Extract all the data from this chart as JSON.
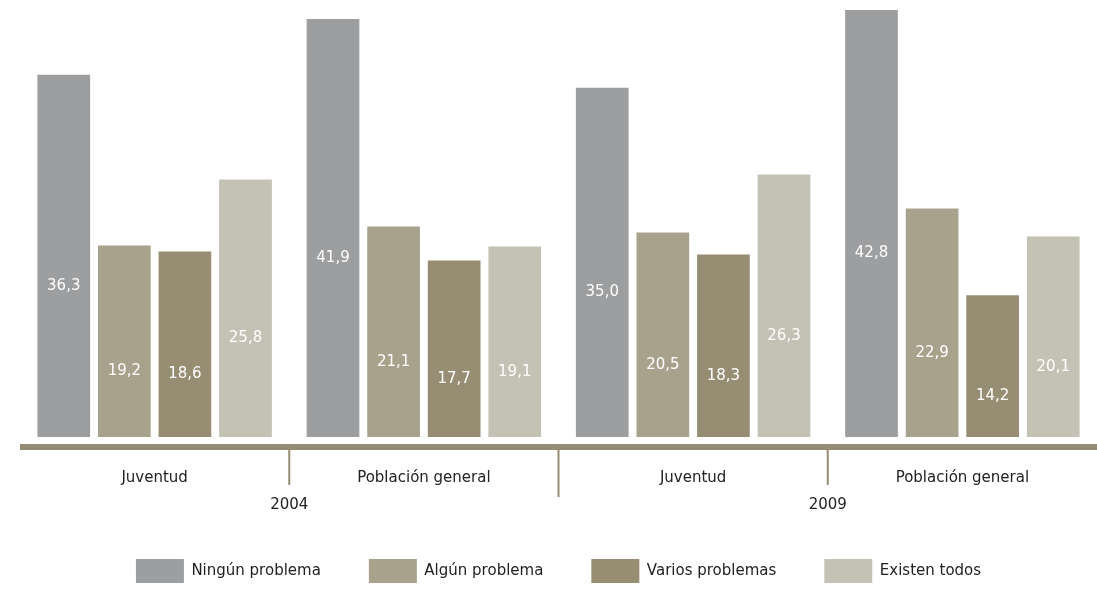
{
  "chart_data": {
    "type": "bar",
    "categories": [
      "Juventud",
      "Población general",
      "Juventud",
      "Población general"
    ],
    "series": [
      {
        "name": "Ningún problema",
        "color": "#9d9ea0",
        "values": [
          36.3,
          41.9,
          35.0,
          42.8
        ],
        "value_labels": [
          "36,3",
          "41,9",
          "35,0",
          "42,8"
        ]
      },
      {
        "name": "Algún problema",
        "color": "#a8a28d",
        "values": [
          19.2,
          21.1,
          20.5,
          22.9
        ],
        "value_labels": [
          "19,2",
          "21,1",
          "20,5",
          "22,9"
        ]
      },
      {
        "name": "Varios problemas",
        "color": "#968d73",
        "values": [
          18.6,
          17.7,
          18.3,
          14.2
        ],
        "value_labels": [
          "18,6",
          "17,7",
          "18,3",
          "14,2"
        ]
      },
      {
        "name": "Existen todos",
        "color": "#c4c2b5",
        "values": [
          25.8,
          19.1,
          26.3,
          20.1
        ],
        "value_labels": [
          "25,8",
          "19,1",
          "26,3",
          "20,1"
        ]
      }
    ],
    "tick_labels": "x",
    "grid": false,
    "legend": "bottom",
    "annotations": [
      "2004",
      "2009"
    ]
  }
}
